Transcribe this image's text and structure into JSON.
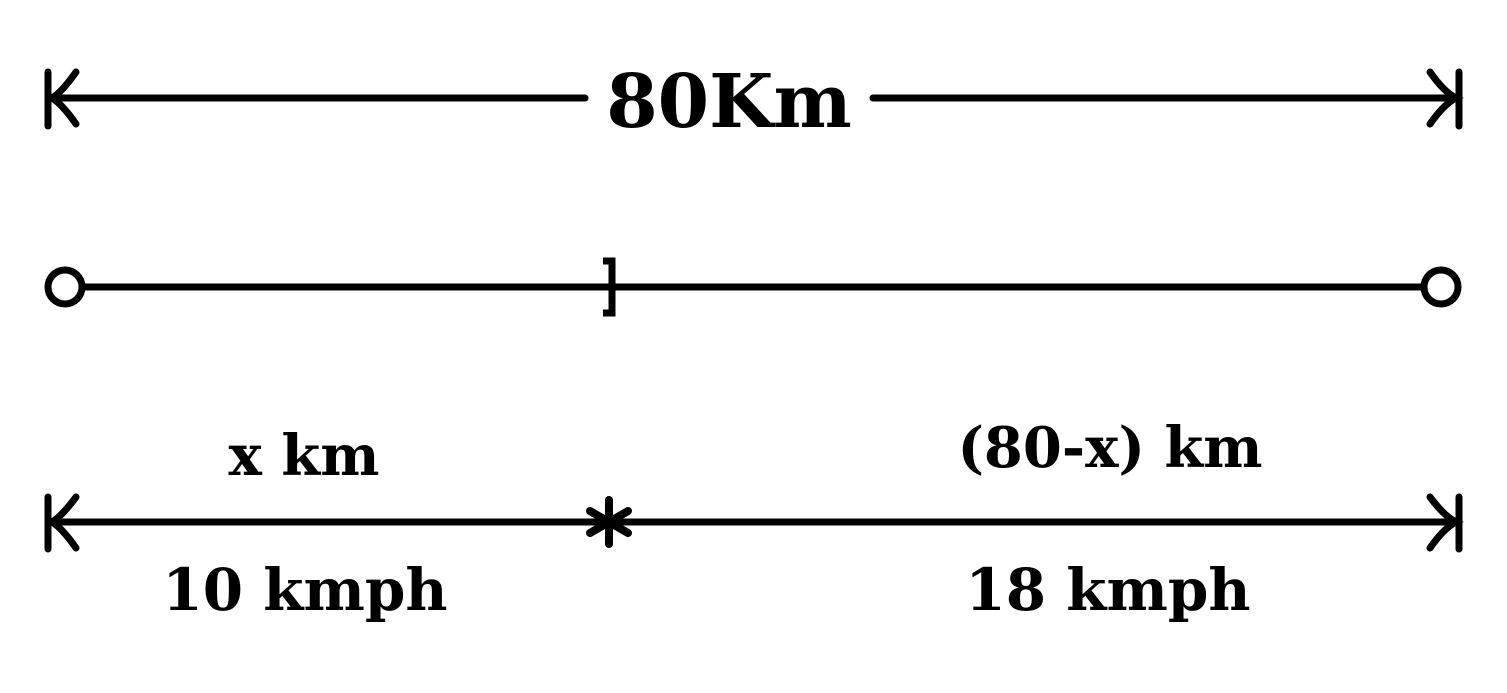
{
  "total_distance_label": "80Km",
  "segment_left": {
    "distance_label": "x km",
    "speed_label": "10 kmph"
  },
  "segment_right": {
    "distance_label": "(80-x) km",
    "speed_label": "18 kmph"
  },
  "colors": {
    "ink": "#000000",
    "background": "#ffffff"
  }
}
